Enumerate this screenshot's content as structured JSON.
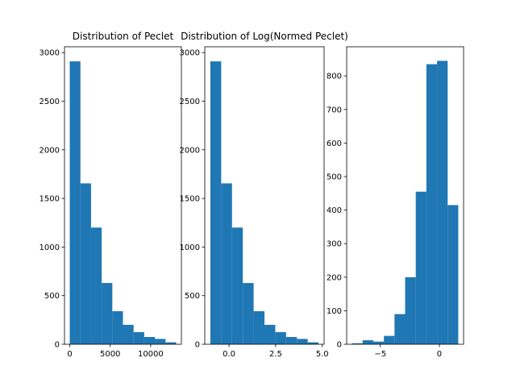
{
  "chart_data": [
    {
      "type": "histogram",
      "title": "Distribution of Peclet",
      "bar_color": "#1f77b4",
      "bin_edges": [
        0,
        1315,
        2630,
        3945,
        5260,
        6575,
        7890,
        9205,
        10520,
        11835,
        13150
      ],
      "counts": [
        2910,
        1655,
        1200,
        630,
        340,
        200,
        125,
        75,
        55,
        20
      ],
      "xlim": [
        -650,
        13800
      ],
      "ylim": [
        0,
        3060
      ],
      "xticks": [
        0,
        5000,
        10000
      ],
      "xtick_labels": [
        "0",
        "5000",
        "10000"
      ],
      "yticks": [
        0,
        500,
        1000,
        1500,
        2000,
        2500,
        3000
      ],
      "ytick_labels": [
        "0",
        "500",
        "1000",
        "1500",
        "2000",
        "2500",
        "3000"
      ]
    },
    {
      "type": "histogram",
      "title": "Distribution of Log(Normed Peclet)",
      "bar_color": "#1f77b4",
      "bin_edges": [
        -1.0,
        -0.42,
        0.16,
        0.74,
        1.32,
        1.9,
        2.48,
        3.06,
        3.64,
        4.22,
        4.8
      ],
      "counts": [
        2910,
        1655,
        1200,
        630,
        340,
        200,
        125,
        75,
        55,
        20
      ],
      "xlim": [
        -1.3,
        5.1
      ],
      "ylim": [
        0,
        3060
      ],
      "xticks": [
        0.0,
        2.5,
        5.0
      ],
      "xtick_labels": [
        "0.0",
        "2.5",
        "5.0"
      ],
      "yticks": [
        0,
        500,
        1000,
        1500,
        2000,
        2500,
        3000
      ],
      "ytick_labels": [
        "0",
        "500",
        "1000",
        "1500",
        "2000",
        "2500",
        "3000"
      ]
    },
    {
      "type": "histogram",
      "title": "",
      "bar_color": "#1f77b4",
      "bin_edges": [
        -7.4,
        -6.5,
        -5.6,
        -4.7,
        -3.8,
        -2.9,
        -2.0,
        -1.1,
        -0.2,
        0.7,
        1.6
      ],
      "counts": [
        3,
        12,
        8,
        25,
        90,
        200,
        455,
        835,
        845,
        415
      ],
      "xlim": [
        -7.85,
        2.05
      ],
      "ylim": [
        0,
        887
      ],
      "xticks": [
        -5,
        0
      ],
      "xtick_labels": [
        "−5",
        "0"
      ],
      "yticks": [
        0,
        100,
        200,
        300,
        400,
        500,
        600,
        700,
        800
      ],
      "ytick_labels": [
        "0",
        "100",
        "200",
        "300",
        "400",
        "500",
        "600",
        "700",
        "800"
      ]
    }
  ]
}
